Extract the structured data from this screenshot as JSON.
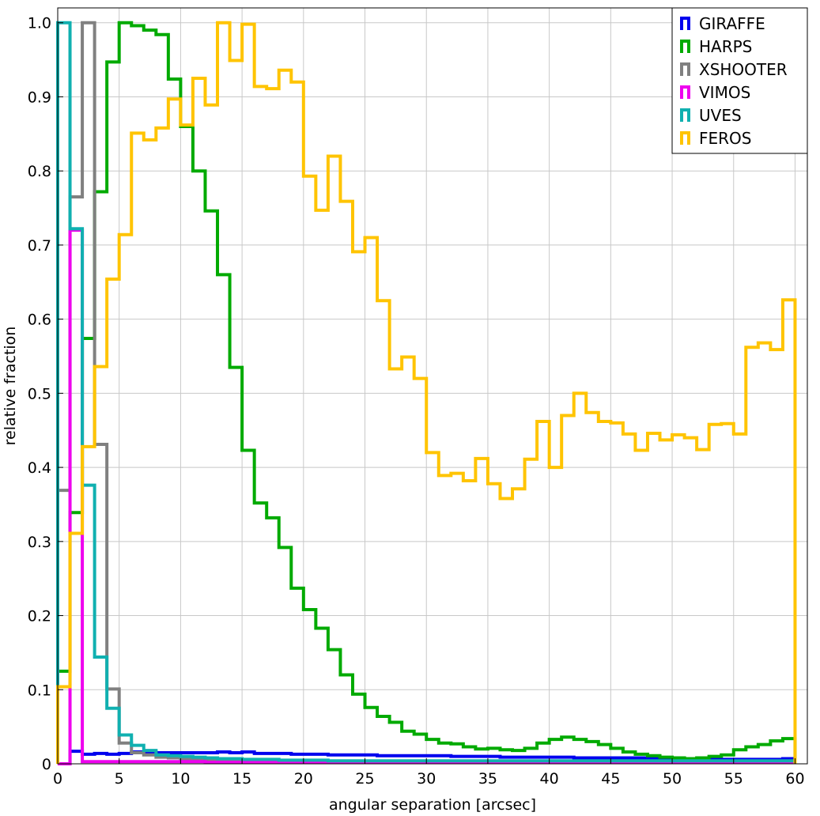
{
  "chart_data": {
    "type": "line",
    "style": "step histogram",
    "title": "",
    "xlabel": "angular separation [arcsec]",
    "ylabel": "relative fraction",
    "xlim": [
      0,
      61
    ],
    "ylim": [
      0,
      1.02
    ],
    "xticks": [
      0,
      5,
      10,
      15,
      20,
      25,
      30,
      35,
      40,
      45,
      50,
      55,
      60
    ],
    "yticks": [
      0,
      0.1,
      0.2,
      0.3,
      0.4,
      0.5,
      0.6,
      0.7,
      0.8,
      0.9,
      1.0
    ],
    "ytick_labels": [
      "0",
      "0.1",
      "0.2",
      "0.3",
      "0.4",
      "0.5",
      "0.6",
      "0.7",
      "0.8",
      "0.9",
      "1.0"
    ],
    "grid": true,
    "legend_position": "top-right",
    "bin_width": 1,
    "bin_start": 0,
    "series": [
      {
        "name": "GIRAFFE",
        "color": "#0000ee",
        "values": [
          0.0,
          0.017,
          0.013,
          0.014,
          0.013,
          0.014,
          0.016,
          0.016,
          0.015,
          0.015,
          0.015,
          0.015,
          0.015,
          0.016,
          0.015,
          0.016,
          0.014,
          0.014,
          0.014,
          0.013,
          0.013,
          0.013,
          0.012,
          0.012,
          0.012,
          0.012,
          0.011,
          0.011,
          0.011,
          0.011,
          0.011,
          0.011,
          0.01,
          0.01,
          0.01,
          0.01,
          0.009,
          0.009,
          0.009,
          0.009,
          0.009,
          0.009,
          0.008,
          0.008,
          0.008,
          0.008,
          0.008,
          0.008,
          0.007,
          0.007,
          0.007,
          0.007,
          0.007,
          0.007,
          0.006,
          0.006,
          0.006,
          0.006,
          0.006,
          0.007
        ]
      },
      {
        "name": "HARPS",
        "color": "#00aa00",
        "values": [
          0.125,
          0.339,
          0.574,
          0.772,
          0.947,
          1.0,
          0.996,
          0.99,
          0.984,
          0.924,
          0.86,
          0.8,
          0.746,
          0.66,
          0.535,
          0.423,
          0.352,
          0.332,
          0.292,
          0.237,
          0.208,
          0.183,
          0.154,
          0.12,
          0.094,
          0.076,
          0.064,
          0.056,
          0.044,
          0.04,
          0.033,
          0.028,
          0.027,
          0.023,
          0.02,
          0.021,
          0.019,
          0.018,
          0.021,
          0.028,
          0.033,
          0.036,
          0.033,
          0.03,
          0.026,
          0.021,
          0.016,
          0.013,
          0.011,
          0.009,
          0.008,
          0.007,
          0.008,
          0.01,
          0.012,
          0.019,
          0.023,
          0.026,
          0.031,
          0.034
        ]
      },
      {
        "name": "XSHOOTER",
        "color": "#808080",
        "values": [
          0.369,
          0.765,
          1.0,
          0.431,
          0.101,
          0.028,
          0.015,
          0.012,
          0.009,
          0.008,
          0.007,
          0.006,
          0.005,
          0.005,
          0.004,
          0.004,
          0.004,
          0.004,
          0.004,
          0.003,
          0.003,
          0.003,
          0.003,
          0.003,
          0.003,
          0.002,
          0.002,
          0.002,
          0.002,
          0.002,
          0.002,
          0.002,
          0.002,
          0.002,
          0.002,
          0.002,
          0.002,
          0.002,
          0.002,
          0.002,
          0.002,
          0.002,
          0.002,
          0.002,
          0.002,
          0.002,
          0.002,
          0.002,
          0.002,
          0.002,
          0.002,
          0.002,
          0.002,
          0.002,
          0.002,
          0.002,
          0.002,
          0.002,
          0.002,
          0.002
        ]
      },
      {
        "name": "VIMOS",
        "color": "#ee00ee",
        "values": [
          0.0,
          0.72,
          0.003,
          0.003,
          0.003,
          0.003,
          0.003,
          0.003,
          0.003,
          0.003,
          0.003,
          0.003,
          0.002,
          0.002,
          0.002,
          0.002,
          0.002,
          0.002,
          0.002,
          0.002,
          0.002,
          0.002,
          0.002,
          0.002,
          0.002,
          0.002,
          0.002,
          0.002,
          0.002,
          0.002,
          0.002,
          0.002,
          0.002,
          0.002,
          0.002,
          0.002,
          0.002,
          0.002,
          0.002,
          0.002,
          0.002,
          0.002,
          0.002,
          0.002,
          0.002,
          0.002,
          0.002,
          0.002,
          0.002,
          0.002,
          0.002,
          0.002,
          0.002,
          0.002,
          0.002,
          0.002,
          0.002,
          0.002,
          0.002,
          0.002
        ]
      },
      {
        "name": "UVES",
        "color": "#10b0b0",
        "values": [
          1.0,
          0.722,
          0.376,
          0.144,
          0.075,
          0.039,
          0.025,
          0.018,
          0.012,
          0.011,
          0.01,
          0.009,
          0.008,
          0.007,
          0.007,
          0.006,
          0.006,
          0.006,
          0.005,
          0.005,
          0.005,
          0.005,
          0.004,
          0.004,
          0.004,
          0.004,
          0.004,
          0.004,
          0.004,
          0.004,
          0.004,
          0.004,
          0.004,
          0.004,
          0.004,
          0.004,
          0.004,
          0.004,
          0.004,
          0.004,
          0.004,
          0.004,
          0.004,
          0.004,
          0.004,
          0.004,
          0.004,
          0.004,
          0.004,
          0.004,
          0.004,
          0.004,
          0.004,
          0.004,
          0.004,
          0.004,
          0.004,
          0.004,
          0.004,
          0.004
        ]
      },
      {
        "name": "FEROS",
        "color": "#ffc400",
        "values": [
          0.104,
          0.311,
          0.428,
          0.536,
          0.654,
          0.714,
          0.851,
          0.842,
          0.858,
          0.897,
          0.862,
          0.925,
          0.889,
          1.0,
          0.949,
          0.998,
          0.914,
          0.911,
          0.936,
          0.92,
          0.793,
          0.747,
          0.82,
          0.759,
          0.691,
          0.71,
          0.625,
          0.533,
          0.549,
          0.52,
          0.42,
          0.389,
          0.392,
          0.382,
          0.412,
          0.378,
          0.358,
          0.371,
          0.411,
          0.462,
          0.4,
          0.47,
          0.5,
          0.474,
          0.462,
          0.46,
          0.445,
          0.423,
          0.446,
          0.437,
          0.444,
          0.44,
          0.424,
          0.458,
          0.459,
          0.445,
          0.562,
          0.568,
          0.559,
          0.626
        ]
      }
    ]
  }
}
